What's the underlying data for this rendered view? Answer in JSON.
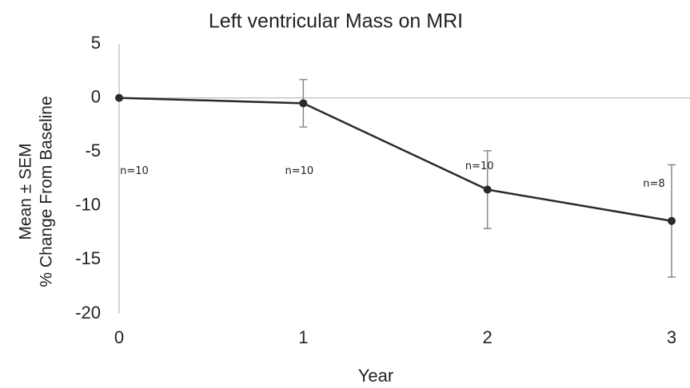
{
  "chart_data": {
    "type": "line",
    "title": "Left ventricular Mass on MRI",
    "x_label": "Year",
    "y_label": [
      "Mean ± SEM",
      "% Change From Baseline"
    ],
    "x": [
      0,
      1,
      2,
      3
    ],
    "series": [
      {
        "color": "#2a2a2a",
        "values": [
          0,
          -0.5,
          -8.5,
          -11.4
        ],
        "errors": [
          0,
          2.2,
          3.6,
          5.2
        ]
      }
    ],
    "annotations": [
      "n=10",
      "n=10",
      "n=10",
      "n=8"
    ],
    "xlim": [
      0,
      3
    ],
    "xticks": [
      0,
      1,
      2,
      3
    ],
    "ylim": [
      -20,
      5
    ],
    "yticks": [
      5,
      0,
      -5,
      -10,
      -15,
      -20
    ]
  }
}
